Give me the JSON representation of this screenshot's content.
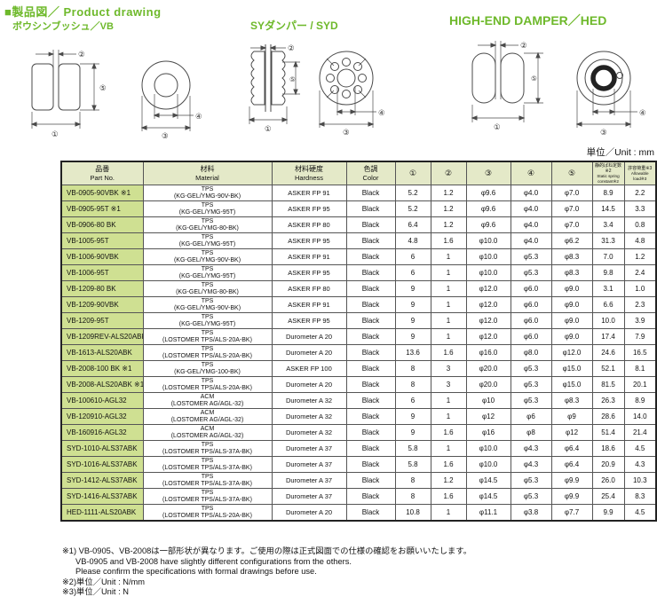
{
  "colors": {
    "accent_green": "#6eb92b",
    "table_header_bg": "#e4e9c8",
    "part_column_bg": "#cfe092"
  },
  "sections": {
    "main_title": "■製品図／ Product drawing",
    "vb_label": "ボウシンブッシュ／VB",
    "syd_label": "SYダンパー / SYD",
    "hed_label": "HIGH-END DAMPER／HED"
  },
  "unit_note": "単位／Unit : mm",
  "dims": [
    "①",
    "②",
    "③",
    "④",
    "⑤"
  ],
  "table": {
    "headers": {
      "part": {
        "jp": "品番",
        "en": "Part No."
      },
      "material": {
        "jp": "材料",
        "en": "Material"
      },
      "hardness": {
        "jp": "材料硬度",
        "en": "Hardness"
      },
      "color": {
        "jp": "色調",
        "en": "Color"
      },
      "dims": [
        "①",
        "②",
        "③",
        "④",
        "⑤"
      ],
      "spring": {
        "jp": "静的ばね定数※2",
        "en": "Static spring constant※2"
      },
      "load": {
        "jp": "許容荷重※3",
        "en": "Allowable load※3"
      }
    },
    "rows": [
      {
        "part": "VB-0905-90VBK ※1",
        "mat1": "TPS",
        "mat2": "(KG-GEL/YMG-90V-BK)",
        "hardness": "ASKER FP 91",
        "color": "Black",
        "d1": "5.2",
        "d2": "1.2",
        "d3": "φ9.6",
        "d4": "φ4.0",
        "d5": "φ7.0",
        "spring": "8.9",
        "load": "2.2"
      },
      {
        "part": "VB-0905-95T ※1",
        "mat1": "TPS",
        "mat2": "(KG-GEL/YMG-95T)",
        "hardness": "ASKER FP 95",
        "color": "Black",
        "d1": "5.2",
        "d2": "1.2",
        "d3": "φ9.6",
        "d4": "φ4.0",
        "d5": "φ7.0",
        "spring": "14.5",
        "load": "3.3"
      },
      {
        "part": "VB-0906-80 BK",
        "mat1": "TPS",
        "mat2": "(KG-GEL/YMG-80-BK)",
        "hardness": "ASKER FP 80",
        "color": "Black",
        "d1": "6.4",
        "d2": "1.2",
        "d3": "φ9.6",
        "d4": "φ4.0",
        "d5": "φ7.0",
        "spring": "3.4",
        "load": "0.8"
      },
      {
        "part": "VB-1005-95T",
        "mat1": "TPS",
        "mat2": "(KG-GEL/YMG-95T)",
        "hardness": "ASKER FP 95",
        "color": "Black",
        "d1": "4.8",
        "d2": "1.6",
        "d3": "φ10.0",
        "d4": "φ4.0",
        "d5": "φ6.2",
        "spring": "31.3",
        "load": "4.8"
      },
      {
        "part": "VB-1006-90VBK",
        "mat1": "TPS",
        "mat2": "(KG-GEL/YMG-90V-BK)",
        "hardness": "ASKER FP 91",
        "color": "Black",
        "d1": "6",
        "d2": "1",
        "d3": "φ10.0",
        "d4": "φ5.3",
        "d5": "φ8.3",
        "spring": "7.0",
        "load": "1.2"
      },
      {
        "part": "VB-1006-95T",
        "mat1": "TPS",
        "mat2": "(KG-GEL/YMG-95T)",
        "hardness": "ASKER FP 95",
        "color": "Black",
        "d1": "6",
        "d2": "1",
        "d3": "φ10.0",
        "d4": "φ5.3",
        "d5": "φ8.3",
        "spring": "9.8",
        "load": "2.4"
      },
      {
        "part": "VB-1209-80 BK",
        "mat1": "TPS",
        "mat2": "(KG-GEL/YMG-80-BK)",
        "hardness": "ASKER FP 80",
        "color": "Black",
        "d1": "9",
        "d2": "1",
        "d3": "φ12.0",
        "d4": "φ6.0",
        "d5": "φ9.0",
        "spring": "3.1",
        "load": "1.0"
      },
      {
        "part": "VB-1209-90VBK",
        "mat1": "TPS",
        "mat2": "(KG-GEL/YMG-90V-BK)",
        "hardness": "ASKER FP 91",
        "color": "Black",
        "d1": "9",
        "d2": "1",
        "d3": "φ12.0",
        "d4": "φ6.0",
        "d5": "φ9.0",
        "spring": "6.6",
        "load": "2.3"
      },
      {
        "part": "VB-1209-95T",
        "mat1": "TPS",
        "mat2": "(KG-GEL/YMG-95T)",
        "hardness": "ASKER FP 95",
        "color": "Black",
        "d1": "9",
        "d2": "1",
        "d3": "φ12.0",
        "d4": "φ6.0",
        "d5": "φ9.0",
        "spring": "10.0",
        "load": "3.9"
      },
      {
        "part": "VB-1209REV-ALS20ABK",
        "mat1": "TPS",
        "mat2": "(LOSTOMER TPS/ALS-20A-BK)",
        "hardness": "Durometer A 20",
        "color": "Black",
        "d1": "9",
        "d2": "1",
        "d3": "φ12.0",
        "d4": "φ6.0",
        "d5": "φ9.0",
        "spring": "17.4",
        "load": "7.9"
      },
      {
        "part": "VB-1613-ALS20ABK",
        "mat1": "TPS",
        "mat2": "(LOSTOMER TPS/ALS-20A-BK)",
        "hardness": "Durometer A 20",
        "color": "Black",
        "d1": "13.6",
        "d2": "1.6",
        "d3": "φ16.0",
        "d4": "φ8.0",
        "d5": "φ12.0",
        "spring": "24.6",
        "load": "16.5"
      },
      {
        "part": "VB-2008-100 BK ※1",
        "mat1": "TPS",
        "mat2": "(KG-GEL/YMG-100-BK)",
        "hardness": "ASKER FP 100",
        "color": "Black",
        "d1": "8",
        "d2": "3",
        "d3": "φ20.0",
        "d4": "φ5.3",
        "d5": "φ15.0",
        "spring": "52.1",
        "load": "8.1"
      },
      {
        "part": "VB-2008-ALS20ABK ※1",
        "mat1": "TPS",
        "mat2": "(LOSTOMER TPS/ALS-20A-BK)",
        "hardness": "Durometer A 20",
        "color": "Black",
        "d1": "8",
        "d2": "3",
        "d3": "φ20.0",
        "d4": "φ5.3",
        "d5": "φ15.0",
        "spring": "81.5",
        "load": "20.1"
      },
      {
        "part": "VB-100610-AGL32",
        "mat1": "ACM",
        "mat2": "(LOSTOMER AG/AGL-32)",
        "hardness": "Durometer A 32",
        "color": "Black",
        "d1": "6",
        "d2": "1",
        "d3": "φ10",
        "d4": "φ5.3",
        "d5": "φ8.3",
        "spring": "26.3",
        "load": "8.9"
      },
      {
        "part": "VB-120910-AGL32",
        "mat1": "ACM",
        "mat2": "(LOSTOMER AG/AGL-32)",
        "hardness": "Durometer A 32",
        "color": "Black",
        "d1": "9",
        "d2": "1",
        "d3": "φ12",
        "d4": "φ6",
        "d5": "φ9",
        "spring": "28.6",
        "load": "14.0"
      },
      {
        "part": "VB-160916-AGL32",
        "mat1": "ACM",
        "mat2": "(LOSTOMER AG/AGL-32)",
        "hardness": "Durometer A 32",
        "color": "Black",
        "d1": "9",
        "d2": "1.6",
        "d3": "φ16",
        "d4": "φ8",
        "d5": "φ12",
        "spring": "51.4",
        "load": "21.4"
      },
      {
        "part": "SYD-1010-ALS37ABK",
        "mat1": "TPS",
        "mat2": "(LOSTOMER TPS/ALS-37A-BK)",
        "hardness": "Durometer A 37",
        "color": "Black",
        "d1": "5.8",
        "d2": "1",
        "d3": "φ10.0",
        "d4": "φ4.3",
        "d5": "φ6.4",
        "spring": "18.6",
        "load": "4.5"
      },
      {
        "part": "SYD-1016-ALS37ABK",
        "mat1": "TPS",
        "mat2": "(LOSTOMER TPS/ALS-37A-BK)",
        "hardness": "Durometer A 37",
        "color": "Black",
        "d1": "5.8",
        "d2": "1.6",
        "d3": "φ10.0",
        "d4": "φ4.3",
        "d5": "φ6.4",
        "spring": "20.9",
        "load": "4.3"
      },
      {
        "part": "SYD-1412-ALS37ABK",
        "mat1": "TPS",
        "mat2": "(LOSTOMER TPS/ALS-37A-BK)",
        "hardness": "Durometer A 37",
        "color": "Black",
        "d1": "8",
        "d2": "1.2",
        "d3": "φ14.5",
        "d4": "φ5.3",
        "d5": "φ9.9",
        "spring": "26.0",
        "load": "10.3"
      },
      {
        "part": "SYD-1416-ALS37ABK",
        "mat1": "TPS",
        "mat2": "(LOSTOMER TPS/ALS-37A-BK)",
        "hardness": "Durometer A 37",
        "color": "Black",
        "d1": "8",
        "d2": "1.6",
        "d3": "φ14.5",
        "d4": "φ5.3",
        "d5": "φ9.9",
        "spring": "25.4",
        "load": "8.3"
      },
      {
        "part": "HED-1111-ALS20ABK",
        "mat1": "TPS",
        "mat2": "(LOSTOMER TPS/ALS-20A-BK)",
        "hardness": "Durometer A 20",
        "color": "Black",
        "d1": "10.8",
        "d2": "1",
        "d3": "φ11.1",
        "d4": "φ3.8",
        "d5": "φ7.7",
        "spring": "9.9",
        "load": "4.5"
      }
    ]
  },
  "footnotes": [
    "※1) VB-0905、VB-2008は一部形状が異なります。ご使用の際は正式図面での仕様の確認をお願いいたします。",
    "VB-0905 and VB-2008 have slightly different configurations from the others.",
    "Please confirm the specifications with formal drawings before use.",
    "※2)単位／Unit : N/mm",
    "※3)単位／Unit : N"
  ]
}
